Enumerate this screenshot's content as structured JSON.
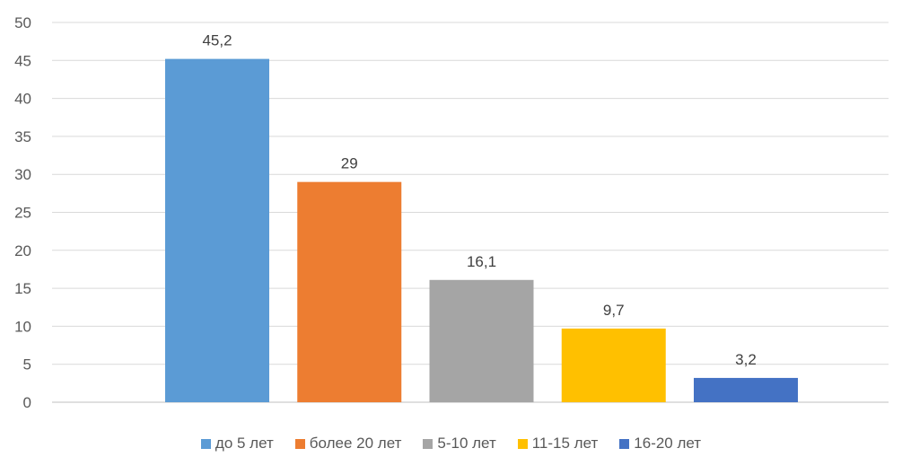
{
  "chart_data": {
    "type": "bar",
    "title": "",
    "xlabel": "",
    "ylabel": "",
    "ylim": [
      0,
      50
    ],
    "yticks": [
      0,
      5,
      10,
      15,
      20,
      25,
      30,
      35,
      40,
      45,
      50
    ],
    "grid": true,
    "legend_position": "bottom",
    "decimal_separator": ",",
    "categories": [
      "до 5 лет",
      "более 20 лет",
      "5-10 лет",
      "11-15 лет",
      "16-20 лет"
    ],
    "values": [
      45.2,
      29,
      16.1,
      9.7,
      3.2
    ],
    "data_labels": [
      "45,2",
      "29",
      "16,1",
      "9,7",
      "3,2"
    ],
    "colors": [
      "#5B9BD5",
      "#ED7D31",
      "#A5A5A5",
      "#FFC000",
      "#4472C4"
    ]
  }
}
